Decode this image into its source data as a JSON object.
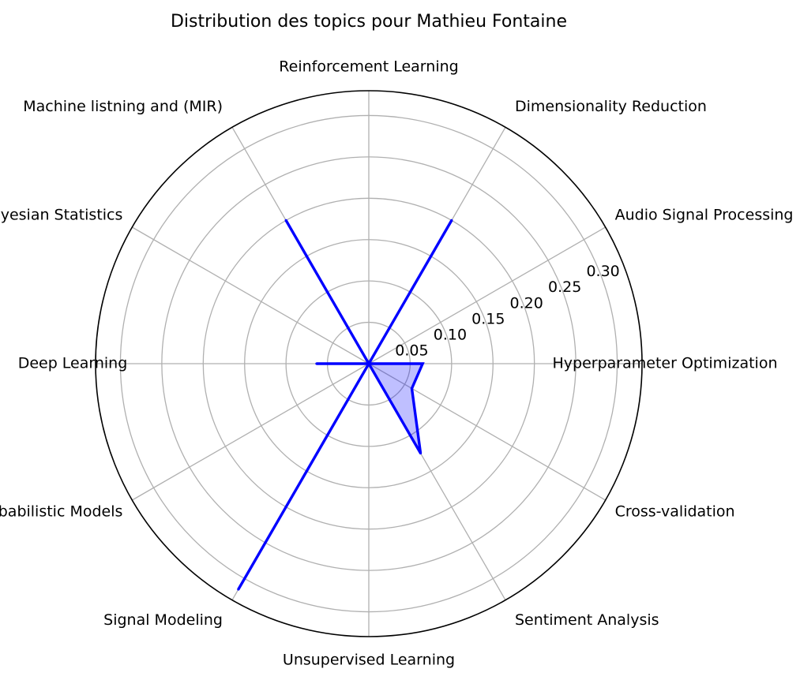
{
  "chart_data": {
    "type": "radar",
    "title": "Distribution des topics pour Mathieu Fontaine",
    "rmax": 0.33,
    "ticks": [
      0.05,
      0.1,
      0.15,
      0.2,
      0.25,
      0.3
    ],
    "tick_labels": [
      "0.05",
      "0.10",
      "0.15",
      "0.20",
      "0.25",
      "0.30"
    ],
    "grid": true,
    "categories": [
      "Hyperparameter Optimization",
      "Audio Signal Processing",
      "Dimensionality Reduction",
      "Reinforcement Learning",
      "Machine listning and (MIR)",
      "Bayesian Statistics",
      "Deep Learning",
      "Probabilistic Models",
      "Signal Modeling",
      "Unsupervised Learning",
      "Sentiment Analysis",
      "Cross-validation"
    ],
    "series": [
      {
        "values": [
          0.065,
          0.0,
          0.2,
          0.0,
          0.2,
          0.0,
          0.063,
          0.0,
          0.315,
          0.0,
          0.125,
          0.06
        ],
        "line_color": "#0000ff",
        "fill_color": "#0000ff",
        "fill_opacity": 0.25
      }
    ]
  }
}
